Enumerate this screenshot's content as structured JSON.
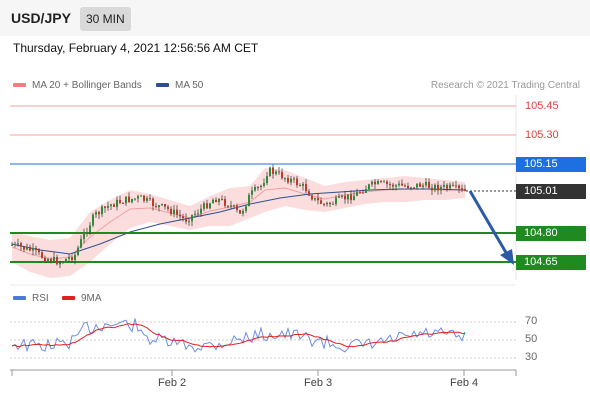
{
  "header": {
    "symbol": "USD/JPY",
    "timeframe": "30 MIN"
  },
  "datetime": "Thursday, February 4, 2021 12:56:56 AM CET",
  "legend": {
    "ma20": {
      "label": "MA 20 + Bollinger Bands",
      "color": "#f08080"
    },
    "ma50": {
      "label": "MA 50",
      "color": "#2f4f8f"
    }
  },
  "credit": "Research © 2021 Trading Central",
  "levels": {
    "r2": {
      "value": "105.45",
      "color": "#e04040"
    },
    "r1": {
      "value": "105.30",
      "color": "#e04040"
    },
    "pivot": {
      "value": "105.15",
      "color": "#1e6fe0"
    },
    "last": {
      "value": "105.01",
      "color": "#333333"
    },
    "s1": {
      "value": "104.80",
      "color": "#1f8a1f"
    },
    "s2": {
      "value": "104.65",
      "color": "#1f8a1f"
    }
  },
  "rsi_legend": {
    "rsi": {
      "label": "RSI",
      "color": "#4a7bd8"
    },
    "ma9": {
      "label": "9MA",
      "color": "#e02020"
    }
  },
  "rsi_levels": [
    "70",
    "50",
    "30"
  ],
  "x_axis": [
    "Feb 2",
    "Feb 3",
    "Feb 4"
  ]
}
